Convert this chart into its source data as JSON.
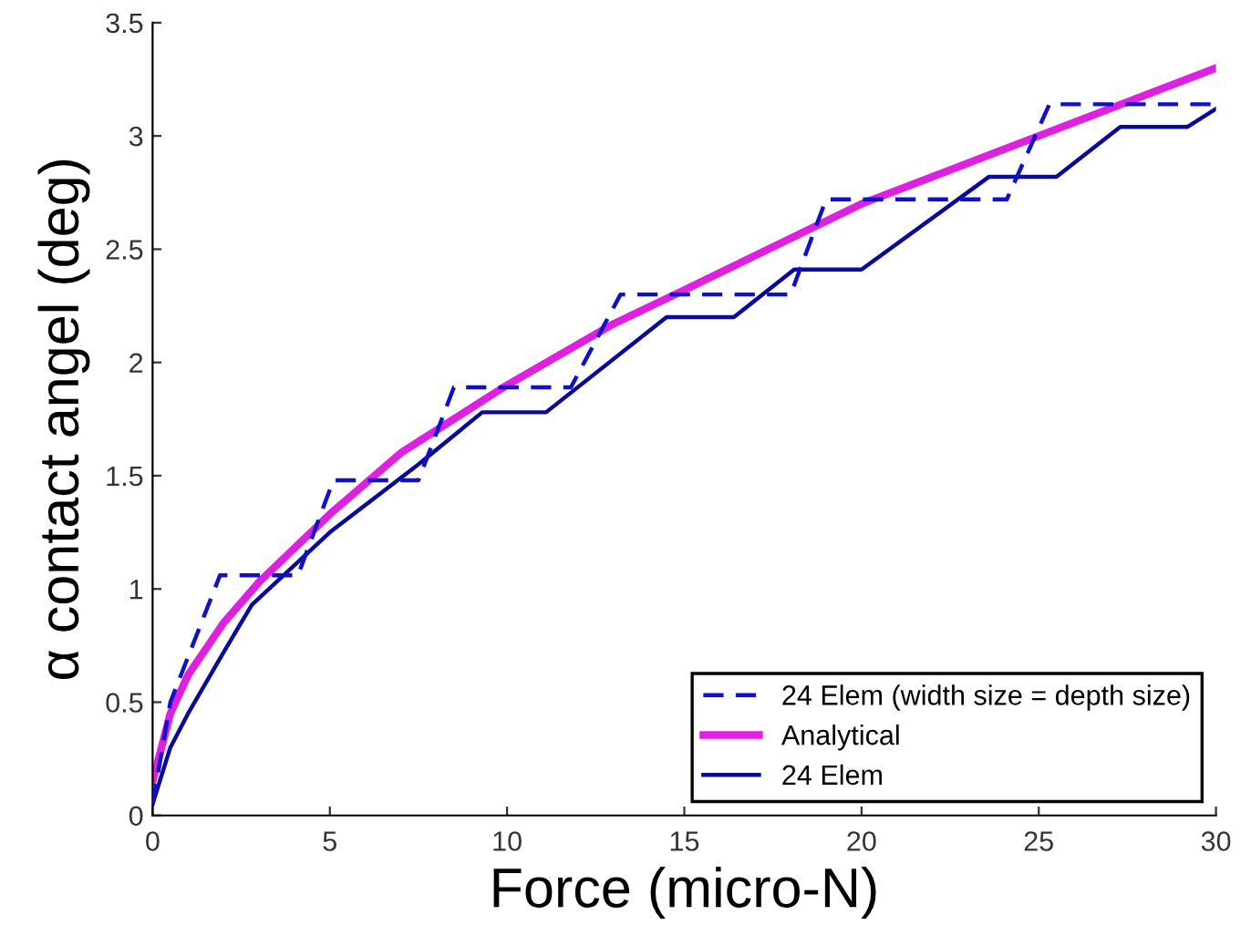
{
  "chart_data": {
    "type": "line",
    "xlabel": "Force (micro-N)",
    "ylabel": "α contact angel (deg)",
    "xlim": [
      0,
      30
    ],
    "ylim": [
      0,
      3.5
    ],
    "xticks": [
      0,
      5,
      10,
      15,
      20,
      25,
      30
    ],
    "yticks": [
      0,
      0.5,
      1,
      1.5,
      2,
      2.5,
      3,
      3.5
    ],
    "grid": false,
    "legend": "bottom right",
    "marker": "none",
    "series": [
      {
        "name": "24 Elem (width size = depth size)",
        "color": "#1010c8",
        "line_style": "dashed",
        "x": [
          0,
          0.5,
          1,
          1.9,
          4.1,
          5.1,
          7.5,
          8.5,
          11.8,
          13.2,
          18.0,
          19.0,
          24.1,
          25.3,
          30
        ],
        "values": [
          0.05,
          0.5,
          0.7,
          1.06,
          1.06,
          1.48,
          1.48,
          1.89,
          1.89,
          2.3,
          2.3,
          2.72,
          2.72,
          3.14,
          3.14
        ]
      },
      {
        "name": "Analytical",
        "color": "#e020e0",
        "line_style": "solid",
        "x": [
          0,
          0.5,
          1,
          2,
          3,
          5,
          7,
          10,
          13,
          15,
          20,
          25,
          30
        ],
        "values": [
          0.15,
          0.45,
          0.62,
          0.85,
          1.03,
          1.33,
          1.6,
          1.9,
          2.17,
          2.32,
          2.7,
          3.0,
          3.3
        ]
      },
      {
        "name": "24 Elem",
        "color": "#0a0a9a",
        "line_style": "solid",
        "x": [
          0,
          0.5,
          1,
          2,
          2.8,
          5,
          7.5,
          9.3,
          11.1,
          14.5,
          16.4,
          18.1,
          20.0,
          23.6,
          25.5,
          27.3,
          29.2,
          30
        ],
        "values": [
          0.05,
          0.3,
          0.45,
          0.72,
          0.93,
          1.25,
          1.55,
          1.78,
          1.78,
          2.2,
          2.2,
          2.41,
          2.41,
          2.82,
          2.82,
          3.04,
          3.04,
          3.12
        ]
      }
    ]
  }
}
